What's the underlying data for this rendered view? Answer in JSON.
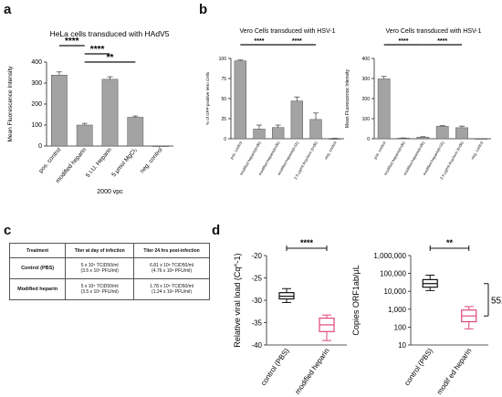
{
  "panels": {
    "a": "a",
    "b": "b",
    "c": "c",
    "d": "d"
  },
  "chart_data": [
    {
      "id": "chart-a",
      "type": "bar",
      "title": "HeLa cells transduced with HAdV5",
      "xlabel": "2000 vpc",
      "ylabel": "Mean Fluorescence Intensity",
      "categories": [
        "pos. control",
        "modified heparin",
        "5 I.U. Heparin",
        "5 μmol MgCl₂",
        "neg. control"
      ],
      "values": [
        338,
        100,
        318,
        137,
        0
      ],
      "errors": [
        15,
        8,
        12,
        6,
        0
      ],
      "ylim": [
        0,
        400
      ],
      "yticks": [
        0,
        100,
        200,
        300,
        400
      ],
      "bar_color": "#a3a3a3",
      "significance": [
        {
          "from": 0,
          "to": 1,
          "label": "****"
        },
        {
          "from": 1,
          "to": 2,
          "label": "****"
        },
        {
          "from": 1,
          "to": 3,
          "label": "**"
        }
      ]
    },
    {
      "id": "chart-b1",
      "type": "bar",
      "title": "Vero Cells transduced with HSV-1",
      "ylabel": "% of GFP-positive Vero Cells",
      "categories": [
        "pos. control",
        "modified heparin(t=0h)",
        "modified heparin(t=0h)",
        "modified heparin(t=1h)",
        "2.5 μg/ml Acyclovir (t=0h)",
        "neg. control"
      ],
      "values": [
        97,
        12,
        14,
        47,
        24,
        0
      ],
      "errors": [
        1,
        5,
        3,
        5,
        8,
        0.5
      ],
      "ylim": [
        0,
        100
      ],
      "yticks": [
        0,
        25,
        50,
        75,
        100
      ],
      "bar_color": "#a3a3a3",
      "significance": [
        {
          "from": 0,
          "to": 2,
          "label": "****"
        },
        {
          "from": 2,
          "to": 4,
          "label": "****"
        }
      ]
    },
    {
      "id": "chart-b2",
      "type": "bar",
      "title": "Vero Cells transduced with HSV-1",
      "ylabel": "Mean Fluorescence Intensity",
      "categories": [
        "pos. control",
        "modified heparin(t=0h)",
        "modified heparin(t=0h)",
        "modified heparin(t=1h)",
        "2.5 μg/ml Acyclovir (t=0h)",
        "neg. control"
      ],
      "values": [
        298,
        3,
        8,
        62,
        55,
        0
      ],
      "errors": [
        12,
        1,
        2,
        3,
        8,
        0
      ],
      "ylim": [
        0,
        400
      ],
      "yticks": [
        0,
        100,
        200,
        300,
        400
      ],
      "bar_color": "#a3a3a3",
      "significance": [
        {
          "from": 0,
          "to": 2,
          "label": "****"
        },
        {
          "from": 2,
          "to": 4,
          "label": "****"
        }
      ]
    },
    {
      "id": "chart-d1",
      "type": "box",
      "ylabel": "Relative viral load (Cq^-1)",
      "categories": [
        "control (PBS)",
        "modified heparin"
      ],
      "colors": [
        "#111111",
        "#e0457b"
      ],
      "boxes": [
        {
          "min": -30.5,
          "q1": -29.7,
          "median": -29.1,
          "q3": -28.3,
          "max": -27.4
        },
        {
          "min": -39.0,
          "q1": -37.0,
          "median": -35.5,
          "q3": -34.0,
          "max": -33.3
        }
      ],
      "ylim": [
        -40,
        -20
      ],
      "yticks": [
        -40,
        -35,
        -30,
        -25,
        -20
      ],
      "significance": [
        {
          "from": 0,
          "to": 1,
          "label": "****"
        }
      ]
    },
    {
      "id": "chart-d2",
      "type": "box",
      "scale": "log",
      "ylabel": "Copies ORF1ab/μL",
      "categories": [
        "control (PBS)",
        "modif ed heparin"
      ],
      "colors": [
        "#111111",
        "#e0457b"
      ],
      "boxes": [
        {
          "min": 11000,
          "q1": 17000,
          "median": 27000,
          "q3": 45000,
          "max": 80000
        },
        {
          "min": 80,
          "q1": 200,
          "median": 420,
          "q3": 900,
          "max": 1400
        }
      ],
      "ylim": [
        10,
        1000000
      ],
      "yticks": [
        10,
        100,
        1000,
        10000,
        100000,
        1000000
      ],
      "ytick_labels": [
        "10",
        "100",
        "1,000",
        "10,000",
        "100,000",
        "1,000,000"
      ],
      "significance": [
        {
          "from": 0,
          "to": 1,
          "label": "**"
        }
      ],
      "fold_annotation": "55X"
    }
  ],
  "table": {
    "headers": [
      "Treatment",
      "Titer at day of infection",
      "Titer 24 hrs post-infection"
    ],
    "rows": [
      {
        "treatment": "Control (PBS)",
        "day0_line1": "5 x 10⁵ TCID50/ml",
        "day0_line2": "(3.5 x 10⁵ PFU/ml)",
        "day1_line1": "6.81 x 10⁸ TCID50/ml",
        "day1_line2": "(4.76 x 10⁸ PFU/ml)"
      },
      {
        "treatment": "Modified heparin",
        "day0_line1": "5 x 10⁵ TCID50/ml",
        "day0_line2": "(3.5 x 10⁵ PFU/ml)",
        "day1_line1": "1.78 x 10⁶ TCID50/ml",
        "day1_line2": "(1.24 x 10⁶ PFU/ml)"
      }
    ]
  }
}
